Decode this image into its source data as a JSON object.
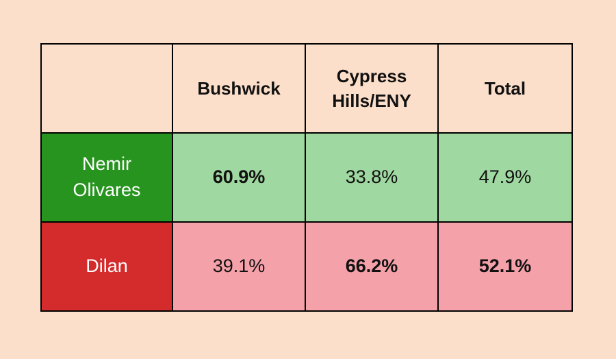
{
  "page": {
    "background_color": "#fbdfca",
    "border_color": "#000000"
  },
  "table": {
    "columns": [
      {
        "label": ""
      },
      {
        "label": "Bushwick"
      },
      {
        "label": "Cypress Hills/ENY"
      },
      {
        "label": "Total"
      }
    ],
    "rows": [
      {
        "label": "Nemir Olivares",
        "label_bg": "#289420",
        "label_text_color": "#ffffff",
        "cell_bg": "#9fd8a0",
        "values": [
          {
            "text": "60.9%",
            "bold": true
          },
          {
            "text": "33.8%",
            "bold": false
          },
          {
            "text": "47.9%",
            "bold": false
          }
        ]
      },
      {
        "label": "Dilan",
        "label_bg": "#d42c2c",
        "label_text_color": "#ffffff",
        "cell_bg": "#f5a1aa",
        "values": [
          {
            "text": "39.1%",
            "bold": false
          },
          {
            "text": "66.2%",
            "bold": true
          },
          {
            "text": "52.1%",
            "bold": true
          }
        ]
      }
    ]
  },
  "chart_data": {
    "type": "table",
    "title": "",
    "categories": [
      "Bushwick",
      "Cypress Hills/ENY",
      "Total"
    ],
    "series": [
      {
        "name": "Nemir Olivares",
        "values": [
          60.9,
          33.8,
          47.9
        ]
      },
      {
        "name": "Dilan",
        "values": [
          39.1,
          66.2,
          52.1
        ]
      }
    ],
    "unit": "%",
    "emphasis_note": "column winner shown in bold",
    "column_winners": [
      "Nemir Olivares",
      "Dilan",
      "Dilan"
    ],
    "colors": {
      "nemir_olivares_header": "#289420",
      "nemir_olivares_cells": "#9fd8a0",
      "dilan_header": "#d42c2c",
      "dilan_cells": "#f5a1aa",
      "background": "#fbdfca"
    }
  }
}
